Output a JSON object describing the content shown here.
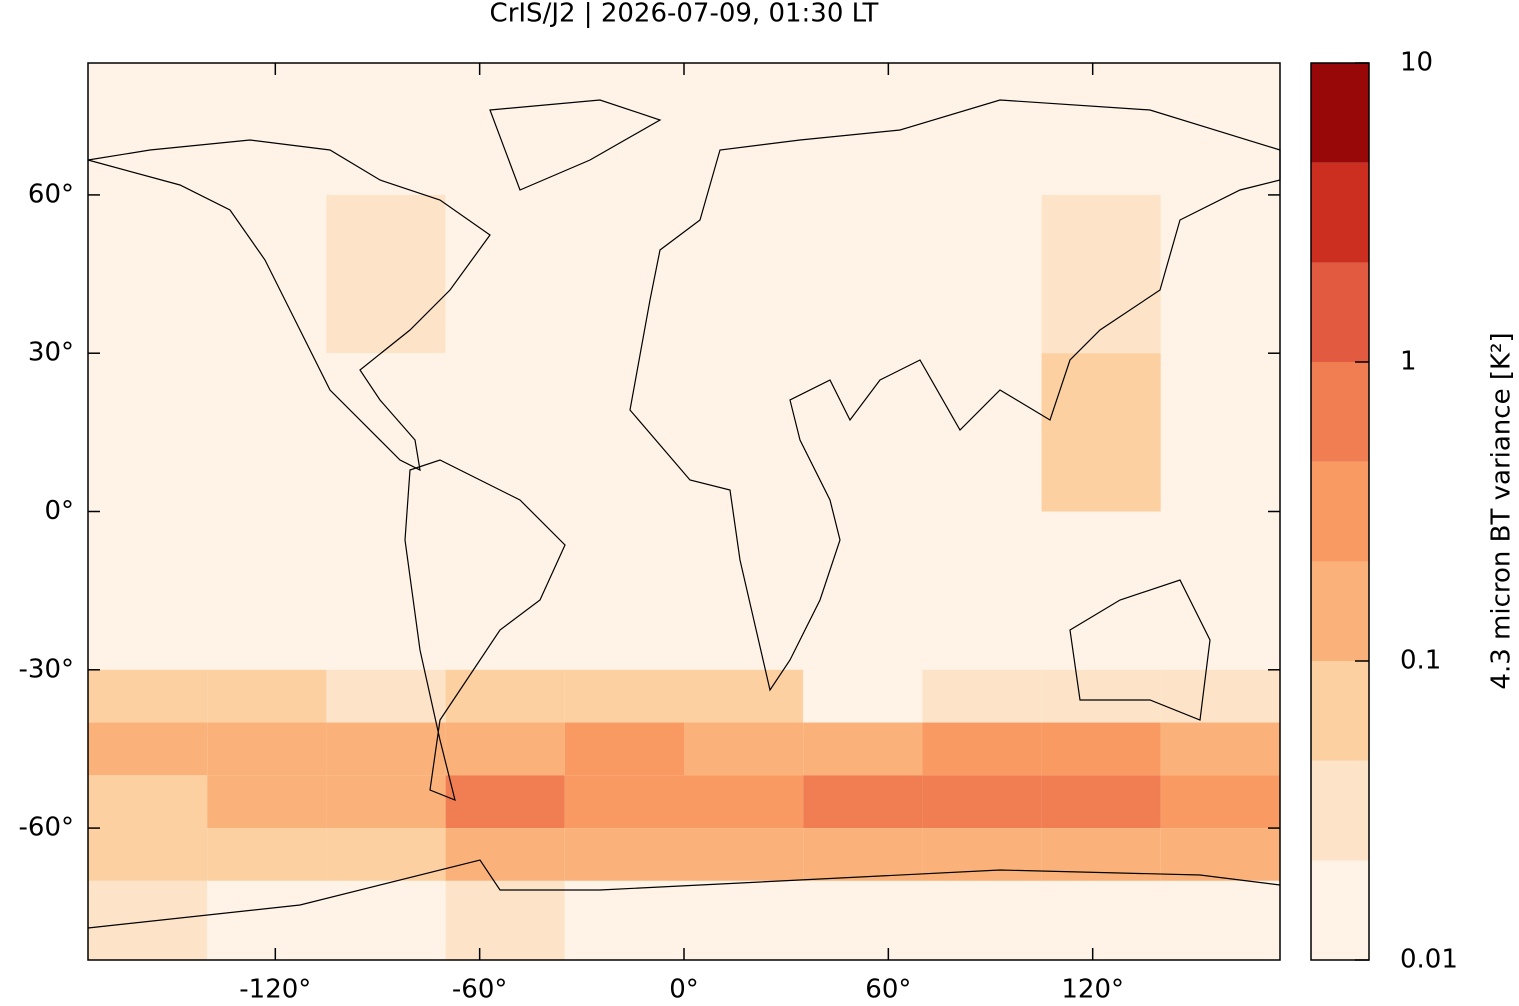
{
  "chart_data": {
    "type": "heatmap",
    "title": "CrIS/J2 | 2026-07-09, 01:30 LT",
    "xlim": [
      -175,
      175
    ],
    "ylim": [
      -85,
      85
    ],
    "xticks": [
      {
        "value": -120,
        "label": "-120°"
      },
      {
        "value": -60,
        "label": "-60°"
      },
      {
        "value": 0,
        "label": "0°"
      },
      {
        "value": 60,
        "label": "60°"
      },
      {
        "value": 120,
        "label": "120°"
      }
    ],
    "yticks": [
      {
        "value": 60,
        "label": "60°"
      },
      {
        "value": 30,
        "label": "30°"
      },
      {
        "value": 0,
        "label": "0°"
      },
      {
        "value": -30,
        "label": "-30°"
      },
      {
        "value": -60,
        "label": "-60°"
      }
    ],
    "field": {
      "lon_edges": [
        -175,
        -140,
        -105,
        -70,
        -35,
        0,
        35,
        70,
        105,
        140,
        175
      ],
      "lat_edges": [
        85,
        60,
        30,
        0,
        -30,
        -40,
        -50,
        -60,
        -70,
        -85
      ],
      "values": [
        [
          0.012,
          0.012,
          0.012,
          0.012,
          0.012,
          0.012,
          0.012,
          0.012,
          0.012,
          0.012
        ],
        [
          0.015,
          0.015,
          0.03,
          0.02,
          0.015,
          0.015,
          0.015,
          0.02,
          0.03,
          0.015
        ],
        [
          0.015,
          0.015,
          0.02,
          0.015,
          0.015,
          0.02,
          0.015,
          0.02,
          0.05,
          0.015
        ],
        [
          0.015,
          0.015,
          0.015,
          0.015,
          0.015,
          0.015,
          0.015,
          0.015,
          0.015,
          0.015
        ],
        [
          0.06,
          0.06,
          0.04,
          0.05,
          0.08,
          0.05,
          0.02,
          0.04,
          0.04,
          0.04
        ],
        [
          0.1,
          0.15,
          0.1,
          0.2,
          0.25,
          0.12,
          0.15,
          0.3,
          0.25,
          0.1
        ],
        [
          0.08,
          0.1,
          0.1,
          0.5,
          0.3,
          0.4,
          0.5,
          0.8,
          0.8,
          0.3
        ],
        [
          0.05,
          0.06,
          0.05,
          0.2,
          0.2,
          0.1,
          0.15,
          0.2,
          0.15,
          0.1
        ],
        [
          0.03,
          0.02,
          0.02,
          0.03,
          0.02,
          0.02,
          0.02,
          0.02,
          0.02,
          0.02
        ]
      ]
    },
    "levels": [
      0.01,
      0.0215,
      0.0464,
      0.1,
      0.215,
      0.464,
      1,
      2.15,
      4.64,
      10
    ],
    "colors": [
      "#fef3e6",
      "#fde4c8",
      "#fcd0a0",
      "#fbb27a",
      "#f89a62",
      "#f07e52",
      "#e25a40",
      "#cc2f1f",
      "#980808"
    ],
    "colorbar": {
      "scale": "log",
      "lim": [
        0.01,
        10
      ],
      "ticks": [
        0.01,
        0.1,
        1,
        10
      ],
      "label": "4.3 micron BT variance [K²]"
    }
  }
}
